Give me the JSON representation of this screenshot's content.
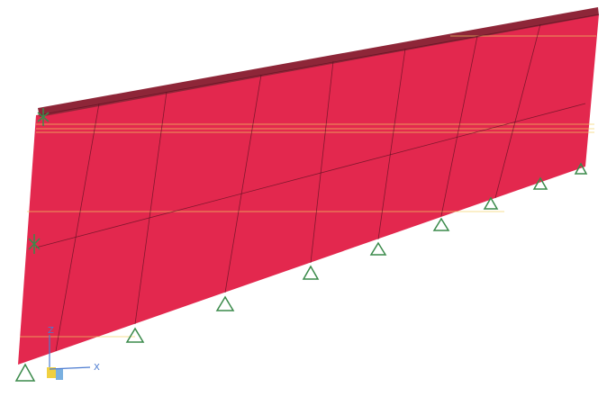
{
  "axes": {
    "z_label": "Z",
    "x_label": "X"
  }
}
